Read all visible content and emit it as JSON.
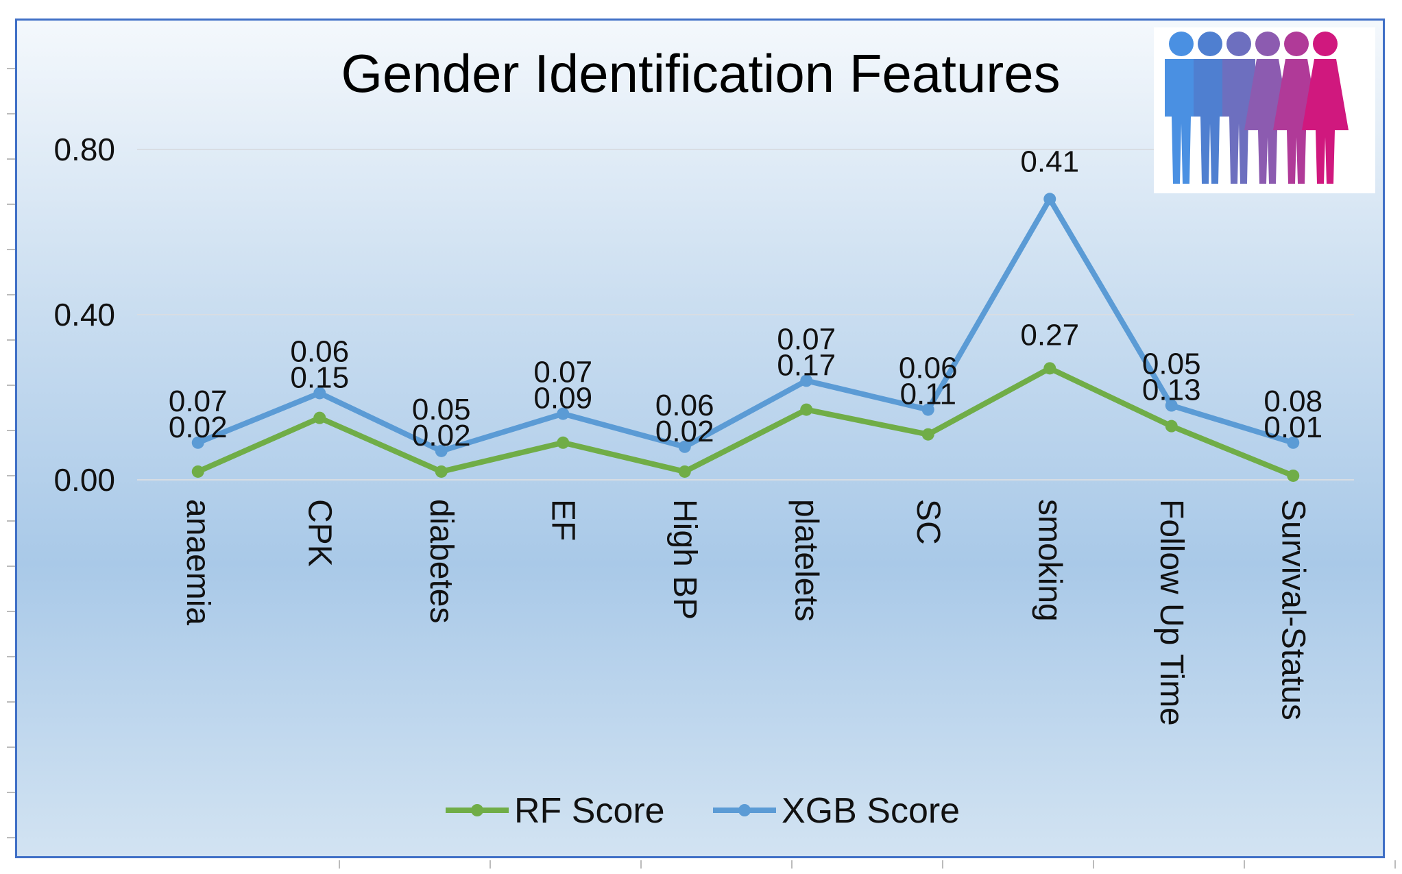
{
  "chart_data": {
    "type": "line",
    "title": "Gender Identification Features",
    "xlabel": "",
    "ylabel": "",
    "ylim": [
      0,
      0.8
    ],
    "yticks": [
      "0.00",
      "0.40",
      "0.80"
    ],
    "ytick_values": [
      0,
      0.4,
      0.8
    ],
    "categories": [
      "anaemia",
      "CPK",
      "diabetes",
      "EF",
      "High BP",
      "platelets",
      "SC",
      "smoking",
      "Follow Up Time",
      "Survival-Status"
    ],
    "series": [
      {
        "name": "RF Score",
        "color": "#70ad47",
        "values": [
          0.02,
          0.15,
          0.02,
          0.09,
          0.02,
          0.17,
          0.11,
          0.27,
          0.13,
          0.01
        ],
        "labels": [
          "0.02",
          "0.15",
          "0.02",
          "0.09",
          "0.02",
          "0.17",
          "0.11",
          "0.27",
          "0.13",
          "0.01"
        ]
      },
      {
        "name": "XGB Score",
        "color": "#5b9bd5",
        "values": [
          0.09,
          0.21,
          0.07,
          0.16,
          0.08,
          0.24,
          0.17,
          0.68,
          0.18,
          0.09
        ],
        "labels": [
          "0.07",
          "0.06",
          "0.05",
          "0.07",
          "0.06",
          "0.07",
          "0.06",
          "0.41",
          "0.05",
          "0.08"
        ]
      }
    ],
    "grid": true,
    "legend_position": "bottom",
    "legend": [
      "RF Score",
      "XGB Score"
    ],
    "logo": "people-gender-icon",
    "logo_colors": [
      "#4a90e2",
      "#4f7fd0",
      "#6d6fbf",
      "#8c5bb0",
      "#b03a98",
      "#d0187e"
    ]
  }
}
